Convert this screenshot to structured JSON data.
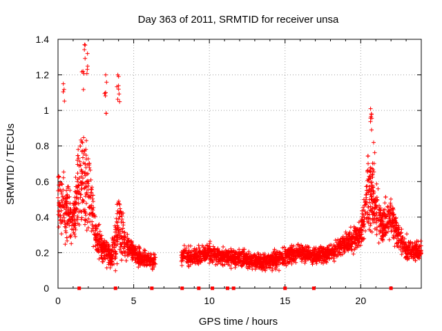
{
  "chart_data": {
    "type": "scatter",
    "title": "Day 363 of 2011, SRMTID for receiver unsa",
    "xlabel": "GPS time / hours",
    "ylabel": "SRMTID / TECUs",
    "xlim": [
      0,
      24
    ],
    "ylim": [
      0,
      1.4
    ],
    "x_ticks": [
      0,
      5,
      10,
      15,
      20
    ],
    "x_tick_labels": [
      "0",
      "5",
      "10",
      "15",
      "20"
    ],
    "y_ticks": [
      0,
      0.2,
      0.4,
      0.6,
      0.8,
      1.0,
      1.2,
      1.4
    ],
    "y_tick_labels": [
      "0",
      "0.2",
      "0.4",
      "0.6",
      "0.8",
      "1",
      "1.2",
      "1.4"
    ],
    "grid": true,
    "marker": "+",
    "color": "#ff0000",
    "series": [
      {
        "name": "SRMTID",
        "envelope": [
          {
            "x": 0.0,
            "y": 0.5,
            "spread": 0.25
          },
          {
            "x": 0.5,
            "y": 0.45,
            "spread": 0.25
          },
          {
            "x": 1.0,
            "y": 0.38,
            "spread": 0.2
          },
          {
            "x": 1.5,
            "y": 0.65,
            "spread": 0.45
          },
          {
            "x": 2.0,
            "y": 0.55,
            "spread": 0.4
          },
          {
            "x": 2.5,
            "y": 0.3,
            "spread": 0.15
          },
          {
            "x": 3.0,
            "y": 0.22,
            "spread": 0.12
          },
          {
            "x": 3.5,
            "y": 0.18,
            "spread": 0.1
          },
          {
            "x": 4.0,
            "y": 0.35,
            "spread": 0.3
          },
          {
            "x": 4.5,
            "y": 0.25,
            "spread": 0.12
          },
          {
            "x": 5.0,
            "y": 0.2,
            "spread": 0.1
          },
          {
            "x": 5.5,
            "y": 0.17,
            "spread": 0.07
          },
          {
            "x": 6.2,
            "y": 0.15,
            "spread": 0.06
          },
          {
            "x": 8.3,
            "y": 0.18,
            "spread": 0.08
          },
          {
            "x": 9.0,
            "y": 0.18,
            "spread": 0.08
          },
          {
            "x": 10.0,
            "y": 0.2,
            "spread": 0.08
          },
          {
            "x": 11.0,
            "y": 0.18,
            "spread": 0.07
          },
          {
            "x": 12.0,
            "y": 0.17,
            "spread": 0.07
          },
          {
            "x": 13.0,
            "y": 0.15,
            "spread": 0.07
          },
          {
            "x": 14.0,
            "y": 0.15,
            "spread": 0.07
          },
          {
            "x": 15.0,
            "y": 0.18,
            "spread": 0.08
          },
          {
            "x": 16.0,
            "y": 0.2,
            "spread": 0.08
          },
          {
            "x": 17.0,
            "y": 0.18,
            "spread": 0.07
          },
          {
            "x": 18.0,
            "y": 0.2,
            "spread": 0.08
          },
          {
            "x": 19.0,
            "y": 0.25,
            "spread": 0.1
          },
          {
            "x": 20.0,
            "y": 0.3,
            "spread": 0.12
          },
          {
            "x": 20.5,
            "y": 0.55,
            "spread": 0.35
          },
          {
            "x": 21.0,
            "y": 0.45,
            "spread": 0.25
          },
          {
            "x": 21.5,
            "y": 0.35,
            "spread": 0.15
          },
          {
            "x": 22.0,
            "y": 0.4,
            "spread": 0.2
          },
          {
            "x": 22.5,
            "y": 0.3,
            "spread": 0.15
          },
          {
            "x": 23.0,
            "y": 0.22,
            "spread": 0.1
          },
          {
            "x": 24.0,
            "y": 0.2,
            "spread": 0.08
          }
        ],
        "gaps": [
          [
            6.45,
            8.15
          ]
        ],
        "density_per_hour": 160,
        "peaks": [
          {
            "x": 1.75,
            "y": 1.37
          },
          {
            "x": 1.95,
            "y": 1.32
          },
          {
            "x": 1.65,
            "y": 1.22
          },
          {
            "x": 3.15,
            "y": 1.2
          },
          {
            "x": 3.95,
            "y": 1.2
          },
          {
            "x": 0.35,
            "y": 1.15
          },
          {
            "x": 3.15,
            "y": 1.1
          },
          {
            "x": 4.0,
            "y": 1.12
          },
          {
            "x": 20.65,
            "y": 1.01
          },
          {
            "x": 20.7,
            "y": 0.98
          },
          {
            "x": 20.85,
            "y": 0.82
          }
        ]
      },
      {
        "name": "zero markers",
        "x": [
          1.4,
          3.8,
          6.2,
          8.2,
          9.3,
          10.2,
          11.2,
          11.6,
          15.0,
          16.9,
          22.0
        ],
        "y": [
          0,
          0,
          0,
          0,
          0,
          0,
          0,
          0,
          0,
          0,
          0
        ]
      }
    ]
  }
}
